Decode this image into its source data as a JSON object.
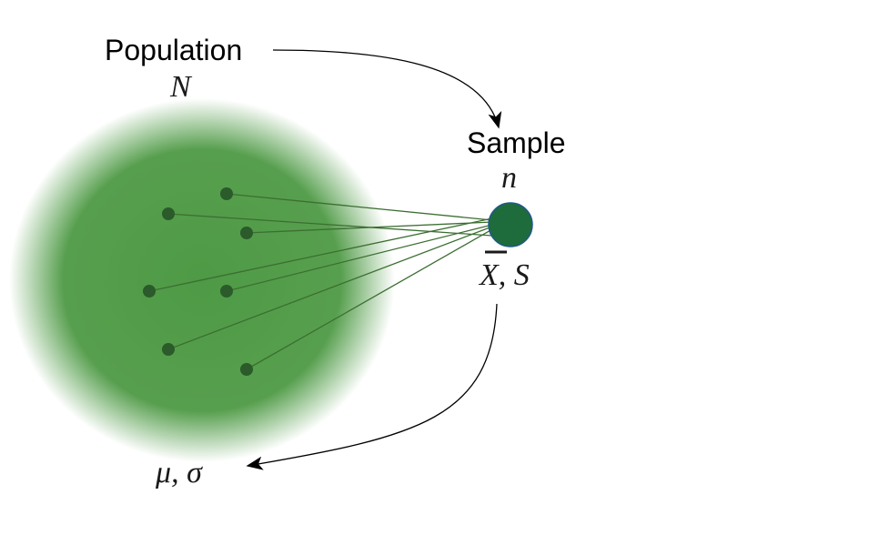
{
  "diagram": {
    "population": {
      "label": "Population",
      "size_symbol": "N",
      "parameters": "μ, σ",
      "cloud_color": "#4e9a45"
    },
    "sample": {
      "label": "Sample",
      "size_symbol": "n",
      "statistics_bar": "X",
      "statistics_rest": ", S",
      "circle_color": "#1e6b3c"
    },
    "colors": {
      "dot": "#2b5a2b",
      "line": "#3c6e32",
      "arrow": "#000000"
    },
    "draws": 8
  }
}
